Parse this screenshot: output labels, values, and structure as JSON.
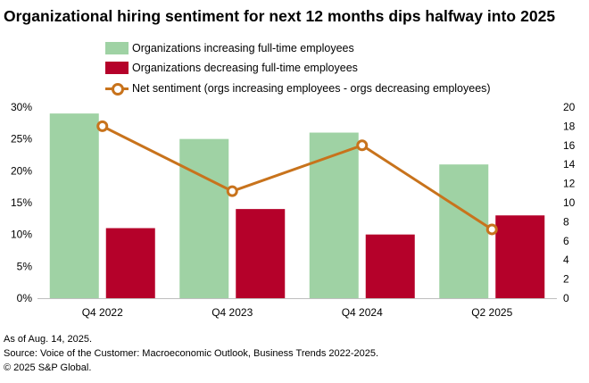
{
  "title": "Organizational hiring sentiment for next 12 months dips halfway into 2025",
  "colors": {
    "increasing": "#9fd2a4",
    "decreasing": "#b5012a",
    "net": "#c8731c",
    "axis": "#bfbfbf"
  },
  "footer": {
    "line1": "As of Aug. 14, 2025.",
    "line2": "Source: Voice of the Customer: Macroeconomic Outlook, Business Trends 2022-2025.",
    "line3": "© 2025 S&P Global."
  },
  "chart_data": {
    "type": "bar",
    "title": "Organizational hiring sentiment for next 12 months dips halfway into 2025",
    "categories": [
      "Q4 2022",
      "Q4 2023",
      "Q4 2024",
      "Q2 2025"
    ],
    "series": [
      {
        "name": "Organizations increasing full-time employees",
        "type": "bar",
        "axis": "left",
        "values": [
          29,
          25,
          26,
          21
        ]
      },
      {
        "name": "Organizations decreasing full-time employees",
        "type": "bar",
        "axis": "left",
        "values": [
          11,
          14,
          10,
          13
        ]
      },
      {
        "name": "Net sentiment (orgs increasing employees - orgs decreasing employees)",
        "type": "line",
        "axis": "right",
        "values": [
          18,
          11.2,
          16,
          7.2
        ]
      }
    ],
    "y_left": {
      "min": 0,
      "max": 30,
      "step": 5,
      "ticks": [
        "0%",
        "5%",
        "10%",
        "15%",
        "20%",
        "25%",
        "30%"
      ]
    },
    "y_right": {
      "min": 0,
      "max": 20,
      "step": 2,
      "ticks": [
        "0",
        "2",
        "4",
        "6",
        "8",
        "10",
        "12",
        "14",
        "16",
        "18",
        "20"
      ]
    },
    "xlabel": "",
    "ylabel": "",
    "legend": "top"
  }
}
